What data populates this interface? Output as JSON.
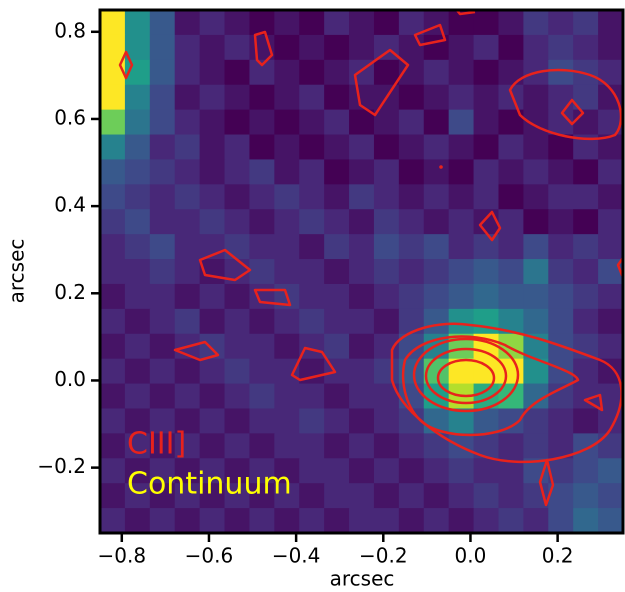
{
  "chart_data": {
    "type": "heatmap",
    "xlabel": "arcsec",
    "ylabel": "arcsec",
    "xlim": [
      -0.85,
      0.35
    ],
    "ylim": [
      -0.35,
      0.85
    ],
    "xticks": [
      {
        "value": -0.8,
        "label": "−0.8"
      },
      {
        "value": -0.6,
        "label": "−0.6"
      },
      {
        "value": -0.4,
        "label": "−0.4"
      },
      {
        "value": -0.2,
        "label": "−0.2"
      },
      {
        "value": 0,
        "label": "0.0"
      },
      0.2
    ],
    "yticks": [
      {
        "value": -0.2,
        "label": "−0.2"
      },
      {
        "value": 0,
        "label": "0.0"
      },
      0.2,
      0.4,
      0.6,
      0.8
    ],
    "colormap": "viridis",
    "legend": [
      {
        "name": "CIII]",
        "color": "#e8221c"
      },
      {
        "name": "Continuum",
        "color": "#ffff00"
      }
    ],
    "z": [
      [
        1,
        0.55,
        0.35,
        0.15,
        0.2,
        0.15,
        0.1,
        0.15,
        0.1,
        0.2,
        0.15,
        0.1,
        0.2,
        0.15,
        0.1,
        0.1,
        0.15,
        0.25,
        0.2,
        0.25,
        0.15
      ],
      [
        1,
        0.55,
        0.35,
        0.2,
        0.15,
        0.2,
        0.15,
        0.1,
        0.15,
        0.1,
        0.15,
        0.2,
        0.15,
        0.1,
        0.15,
        0.2,
        0.1,
        0.2,
        0.25,
        0.2,
        0.15
      ],
      [
        1,
        0.6,
        0.35,
        0.2,
        0.15,
        0.1,
        0.2,
        0.15,
        0.1,
        0.15,
        0.2,
        0.1,
        0.15,
        0.2,
        0.15,
        0.1,
        0.15,
        0.2,
        0.3,
        0.25,
        0.2
      ],
      [
        1,
        0.5,
        0.3,
        0.15,
        0.2,
        0.15,
        0.1,
        0.15,
        0.2,
        0.1,
        0.15,
        0.15,
        0.1,
        0.15,
        0.2,
        0.15,
        0.2,
        0.15,
        0.2,
        0.25,
        0.15
      ],
      [
        0.8,
        0.45,
        0.3,
        0.2,
        0.15,
        0.1,
        0.15,
        0.1,
        0.15,
        0.2,
        0.1,
        0.15,
        0.2,
        0.1,
        0.3,
        0.15,
        0.1,
        0.15,
        0.2,
        0.15,
        0.2
      ],
      [
        0.5,
        0.35,
        0.2,
        0.25,
        0.15,
        0.2,
        0.1,
        0.15,
        0.1,
        0.15,
        0.2,
        0.1,
        0.15,
        0.2,
        0.15,
        0.1,
        0.2,
        0.15,
        0.1,
        0.2,
        0.15
      ],
      [
        0.35,
        0.3,
        0.25,
        0.2,
        0.15,
        0.2,
        0.25,
        0.15,
        0.2,
        0.1,
        0.15,
        0.2,
        0.1,
        0.15,
        0.1,
        0.2,
        0.15,
        0.2,
        0.15,
        0.1,
        0.2
      ],
      [
        0.3,
        0.25,
        0.2,
        0.25,
        0.2,
        0.15,
        0.2,
        0.25,
        0.2,
        0.15,
        0.25,
        0.2,
        0.15,
        0.2,
        0.15,
        0.2,
        0.1,
        0.15,
        0.2,
        0.2,
        0.15
      ],
      [
        0.25,
        0.3,
        0.2,
        0.2,
        0.25,
        0.2,
        0.15,
        0.2,
        0.25,
        0.2,
        0.15,
        0.25,
        0.2,
        0.15,
        0.2,
        0.15,
        0.2,
        0.1,
        0.15,
        0.1,
        0.2
      ],
      [
        0.2,
        0.25,
        0.3,
        0.2,
        0.2,
        0.25,
        0.2,
        0.2,
        0.15,
        0.25,
        0.2,
        0.3,
        0.25,
        0.3,
        0.2,
        0.25,
        0.2,
        0.3,
        0.2,
        0.25,
        0.2
      ],
      [
        0.2,
        0.2,
        0.25,
        0.2,
        0.15,
        0.2,
        0.25,
        0.2,
        0.2,
        0.15,
        0.2,
        0.25,
        0.2,
        0.25,
        0.3,
        0.35,
        0.3,
        0.45,
        0.25,
        0.2,
        0.3
      ],
      [
        0.15,
        0.2,
        0.2,
        0.15,
        0.2,
        0.15,
        0.2,
        0.25,
        0.2,
        0.2,
        0.15,
        0.2,
        0.25,
        0.3,
        0.35,
        0.4,
        0.35,
        0.35,
        0.3,
        0.25,
        0.2
      ],
      [
        0.2,
        0.15,
        0.2,
        0.25,
        0.15,
        0.2,
        0.15,
        0.2,
        0.25,
        0.2,
        0.2,
        0.15,
        0.25,
        0.35,
        0.55,
        0.6,
        0.5,
        0.4,
        0.3,
        0.2,
        0.15
      ],
      [
        0.15,
        0.2,
        0.15,
        0.2,
        0.25,
        0.2,
        0.2,
        0.15,
        0.2,
        0.25,
        0.15,
        0.2,
        0.3,
        0.5,
        0.8,
        1,
        0.85,
        0.5,
        0.3,
        0.25,
        0.2
      ],
      [
        0.2,
        0.15,
        0.2,
        0.15,
        0.2,
        0.25,
        0.2,
        0.2,
        0.15,
        0.2,
        0.2,
        0.25,
        0.35,
        0.75,
        1,
        1,
        1,
        0.55,
        0.3,
        0.2,
        0.15
      ],
      [
        0.15,
        0.2,
        0.15,
        0.2,
        0.15,
        0.2,
        0.25,
        0.2,
        0.2,
        0.15,
        0.2,
        0.2,
        0.3,
        0.6,
        0.9,
        0.65,
        0.7,
        0.4,
        0.25,
        0.2,
        0.2
      ],
      [
        0.2,
        0.15,
        0.2,
        0.15,
        0.2,
        0.15,
        0.2,
        0.2,
        0.25,
        0.2,
        0.15,
        0.2,
        0.25,
        0.4,
        0.5,
        0.35,
        0.3,
        0.25,
        0.2,
        0.15,
        0.2
      ],
      [
        0.15,
        0.2,
        0.15,
        0.2,
        0.15,
        0.2,
        0.15,
        0.2,
        0.2,
        0.15,
        0.2,
        0.15,
        0.2,
        0.25,
        0.3,
        0.25,
        0.2,
        0.25,
        0.2,
        0.3,
        0.25
      ],
      [
        0.2,
        0.15,
        0.2,
        0.15,
        0.2,
        0.15,
        0.2,
        0.15,
        0.2,
        0.2,
        0.15,
        0.2,
        0.15,
        0.2,
        0.25,
        0.2,
        0.2,
        0.3,
        0.25,
        0.3,
        0.35
      ],
      [
        0.15,
        0.2,
        0.15,
        0.2,
        0.15,
        0.2,
        0.15,
        0.2,
        0.15,
        0.2,
        0.2,
        0.15,
        0.2,
        0.15,
        0.2,
        0.25,
        0.2,
        0.25,
        0.3,
        0.35,
        0.3
      ],
      [
        0.2,
        0.15,
        0.2,
        0.15,
        0.2,
        0.15,
        0.2,
        0.15,
        0.2,
        0.15,
        0.2,
        0.2,
        0.15,
        0.2,
        0.15,
        0.2,
        0.25,
        0.2,
        0.3,
        0.4,
        0.35
      ]
    ]
  }
}
